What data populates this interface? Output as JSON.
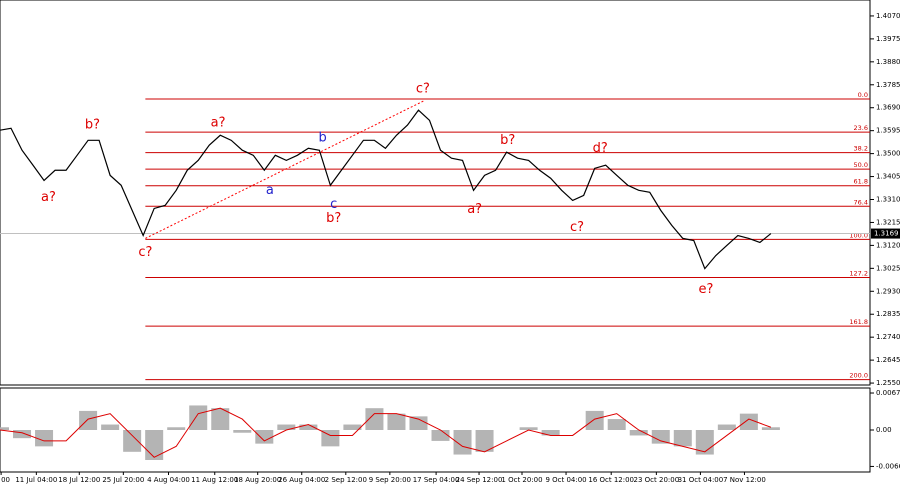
{
  "chart_data": {
    "type": "line",
    "price": {
      "color": "#000000",
      "xlim": [
        0,
        79
      ],
      "ylim": [
        1.2542,
        1.4136
      ],
      "values": [
        1.3597,
        1.3605,
        1.3514,
        1.3452,
        1.3389,
        1.3431,
        1.3431,
        1.3493,
        1.3555,
        1.3555,
        1.341,
        1.3369,
        1.3265,
        1.3161,
        1.3273,
        1.3286,
        1.3348,
        1.3431,
        1.3472,
        1.3535,
        1.3576,
        1.3555,
        1.3514,
        1.3493,
        1.3431,
        1.3493,
        1.3472,
        1.3493,
        1.3522,
        1.3514,
        1.3369,
        1.3431,
        1.3493,
        1.3555,
        1.3555,
        1.3522,
        1.3576,
        1.3618,
        1.368,
        1.3638,
        1.3514,
        1.3481,
        1.3472,
        1.3348,
        1.341,
        1.3431,
        1.3506,
        1.3481,
        1.3472,
        1.3431,
        1.3398,
        1.3348,
        1.3306,
        1.3327,
        1.3439,
        1.3452,
        1.341,
        1.3369,
        1.3348,
        1.334,
        1.3265,
        1.3203,
        1.3149,
        1.314,
        1.3024,
        1.3078,
        1.312,
        1.3161,
        1.3149,
        1.3132,
        1.3169
      ],
      "yticks": [
        {
          "value": 1.407,
          "label": "1.4070"
        },
        1.3975,
        {
          "value": 1.388,
          "label": "1.3880"
        },
        1.3785,
        {
          "value": 1.369,
          "label": "1.3690"
        },
        1.3595,
        {
          "value": 1.35,
          "label": "1.3500"
        },
        1.3405,
        {
          "value": 1.331,
          "label": "1.3310"
        },
        1.3215,
        {
          "value": 1.312,
          "label": "1.3120"
        },
        1.3025,
        {
          "value": 1.293,
          "label": "1.2930"
        },
        1.2835,
        {
          "value": 1.274,
          "label": "1.2740"
        },
        1.2645,
        {
          "value": 1.255,
          "label": "1.2550"
        }
      ],
      "last_price": 1.3169,
      "fib_start": 13.2,
      "fib_levels": [
        {
          "label": "0.0",
          "value": 1.3726
        },
        {
          "label": "23.6",
          "value": 1.3589
        },
        {
          "label": "38.2",
          "value": 1.3504
        },
        {
          "label": "50.0",
          "value": 1.3436
        },
        {
          "label": "61.8",
          "value": 1.3367
        },
        {
          "label": "76.4",
          "value": 1.3282
        },
        {
          "label": "100.0",
          "value": 1.3145
        },
        {
          "label": "127.2",
          "value": 1.2987
        },
        {
          "label": "161.8",
          "value": 1.2786
        },
        {
          "label": "200.0",
          "value": 1.2564
        }
      ],
      "fib_color": "#cc0000",
      "trendline": {
        "x": [
          13.2,
          38.6
        ],
        "values": [
          1.3149,
          1.3721
        ],
        "color": "#ff0000"
      },
      "annotations": [
        {
          "text": "a?",
          "x": 4.4,
          "value": 1.3319,
          "color": "#dd0000"
        },
        {
          "text": "b?",
          "x": 8.4,
          "value": 1.3618,
          "color": "#dd0000"
        },
        {
          "text": "c?",
          "x": 13.2,
          "value": 1.3091,
          "color": "#dd0000"
        },
        {
          "text": "a?",
          "x": 19.8,
          "value": 1.3626,
          "color": "#dd0000"
        },
        {
          "text": "a",
          "x": 24.5,
          "value": 1.3348,
          "color": "#2222cc"
        },
        {
          "text": "b",
          "x": 29.3,
          "value": 1.3564,
          "color": "#2222cc"
        },
        {
          "text": "c",
          "x": 30.3,
          "value": 1.329,
          "color": "#2222cc"
        },
        {
          "text": "b?",
          "x": 30.3,
          "value": 1.3232,
          "color": "#dd0000"
        },
        {
          "text": "c?",
          "x": 38.4,
          "value": 1.3767,
          "color": "#dd0000"
        },
        {
          "text": "a?",
          "x": 43.1,
          "value": 1.3269,
          "color": "#dd0000"
        },
        {
          "text": "b?",
          "x": 46.1,
          "value": 1.3555,
          "color": "#dd0000"
        },
        {
          "text": "c?",
          "x": 52.4,
          "value": 1.3194,
          "color": "#dd0000"
        },
        {
          "text": "d?",
          "x": 54.5,
          "value": 1.3522,
          "color": "#dd0000"
        },
        {
          "text": "e?",
          "x": 64.1,
          "value": 1.2937,
          "color": "#dd0000"
        }
      ]
    },
    "xticks": [
      {
        "value": 0.1,
        "label": "00"
      },
      {
        "value": 3.3,
        "label": "11 Jul 04:00"
      },
      {
        "value": 7.2,
        "label": "18 Jul 12:00"
      },
      {
        "value": 11.2,
        "label": "25 Jul 20:00"
      },
      {
        "value": 15.3,
        "label": "4 Aug 04:00"
      },
      {
        "value": 19.5,
        "label": "11 Aug 12:00"
      },
      {
        "value": 23.4,
        "label": "18 Aug 20:00"
      },
      {
        "value": 27.4,
        "label": "26 Aug 04:00"
      },
      {
        "value": 31.4,
        "label": "2 Sep 12:00"
      },
      {
        "value": 35.4,
        "label": "9 Sep 20:00"
      },
      {
        "value": 39.6,
        "label": "17 Sep 04:00"
      },
      {
        "value": 43.5,
        "label": "24 Sep 12:00"
      },
      {
        "value": 47.4,
        "label": "1 Oct 20:00"
      },
      {
        "value": 51.4,
        "label": "9 Oct 04:00"
      },
      {
        "value": 55.5,
        "label": "16 Oct 12:00"
      },
      {
        "value": 59.6,
        "label": "23 Oct 20:00"
      },
      {
        "value": 63.6,
        "label": "31 Oct 04:00"
      },
      {
        "value": 67.6,
        "label": "7 Nov 12:00"
      }
    ],
    "macd": {
      "ylim": [
        -0.0077,
        0.0077
      ],
      "yticks": [
        0.00678,
        {
          "value": 0,
          "label": "0.00"
        },
        -0.00668
      ],
      "x": [
        0,
        2,
        4,
        6,
        8,
        10,
        12,
        14,
        16,
        18,
        20,
        22,
        24,
        26,
        28,
        30,
        32,
        34,
        36,
        38,
        40,
        42,
        44,
        46,
        48,
        50,
        52,
        54,
        56,
        58,
        60,
        62,
        64,
        66,
        68,
        70
      ],
      "series": [
        {
          "type": "bar",
          "color": "#b4b4b4",
          "values": [
            0.0005,
            -0.0015,
            -0.003,
            0,
            0.0035,
            0.001,
            -0.004,
            -0.0055,
            0.0005,
            0.0045,
            0.004,
            -0.0005,
            -0.0025,
            0.001,
            0.001,
            -0.003,
            0.001,
            0.004,
            0.003,
            0.0025,
            -0.002,
            -0.0045,
            -0.004,
            0,
            0.0005,
            -0.001,
            0,
            0.0035,
            0.002,
            -0.001,
            -0.0025,
            -0.003,
            -0.0045,
            0.001,
            0.003,
            0.0005
          ]
        },
        {
          "type": "line",
          "color": "#dd0000",
          "values": [
            0,
            -0.0005,
            -0.002,
            -0.002,
            0.002,
            0.003,
            -0.001,
            -0.005,
            -0.003,
            0.003,
            0.004,
            0.002,
            -0.002,
            0,
            0.001,
            -0.001,
            -0.001,
            0.003,
            0.003,
            0.002,
            0,
            -0.003,
            -0.004,
            -0.002,
            0,
            -0.001,
            -0.001,
            0.002,
            0.003,
            0,
            -0.002,
            -0.003,
            -0.004,
            -0.001,
            0.002,
            0.0005
          ]
        }
      ]
    }
  }
}
